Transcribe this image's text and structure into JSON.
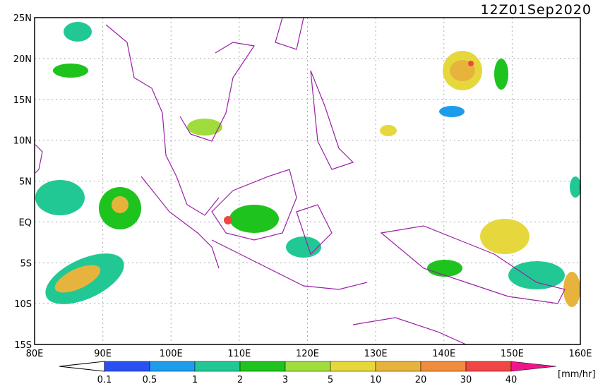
{
  "title": "12Z01Sep2020",
  "lat_labels": [
    "25N",
    "20N",
    "15N",
    "10N",
    "5N",
    "EQ",
    "5S",
    "10S",
    "15S"
  ],
  "lon_labels": [
    "80E",
    "90E",
    "100E",
    "110E",
    "120E",
    "130E",
    "140E",
    "150E",
    "160E"
  ],
  "colorbar": {
    "labels": [
      "0.1",
      "0.5",
      "1",
      "2",
      "3",
      "5",
      "10",
      "20",
      "30",
      "40"
    ],
    "colors": [
      "#2b50f2",
      "#1e9cec",
      "#22c894",
      "#1ec31e",
      "#a0dc3c",
      "#e6d83c",
      "#e6b43c",
      "#f08c3c",
      "#f04646",
      "#f0148c"
    ],
    "unit": "[mm/hr]"
  }
}
